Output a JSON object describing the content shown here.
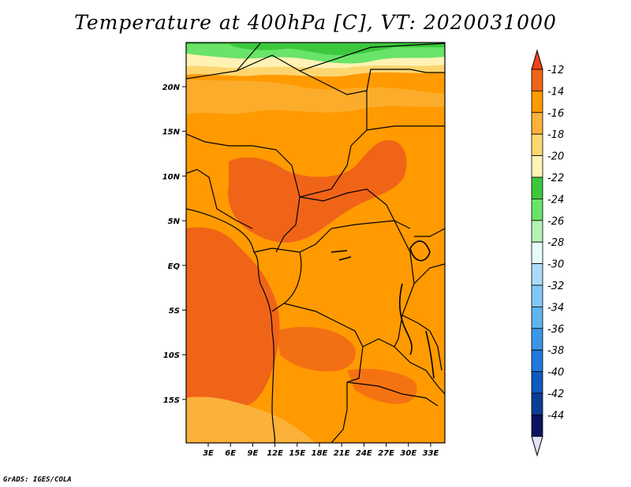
{
  "title": "Temperature at 400hPa [C], VT: 2020031000",
  "credit": "GrADS: IGES/COLA",
  "map": {
    "lat_ticks": [
      "20N",
      "15N",
      "10N",
      "5N",
      "EQ",
      "5S",
      "10S",
      "15S"
    ],
    "lon_ticks": [
      "3E",
      "6E",
      "9E",
      "12E",
      "15E",
      "18E",
      "21E",
      "24E",
      "27E",
      "30E",
      "33E"
    ]
  },
  "colorbar": {
    "levels": [
      "-12",
      "-14",
      "-16",
      "-18",
      "-20",
      "-22",
      "-24",
      "-26",
      "-28",
      "-30",
      "-32",
      "-34",
      "-36",
      "-38",
      "-40",
      "-42",
      "-44"
    ],
    "colors": [
      "#f06418",
      "#ff9a00",
      "#fbb13a",
      "#fdd670",
      "#fff2b4",
      "#3cc83c",
      "#69e469",
      "#b4f2b4",
      "#e6fbfb",
      "#aadcf7",
      "#82c8f7",
      "#5fb4f0",
      "#3c96e6",
      "#1f78dc",
      "#0f5abe",
      "#0a3c96",
      "#09145e"
    ],
    "top_color": "#f04214",
    "bottom_color": "#e2e2f8"
  },
  "legend_semantics": {
    "icon": "colorbar-icon"
  }
}
